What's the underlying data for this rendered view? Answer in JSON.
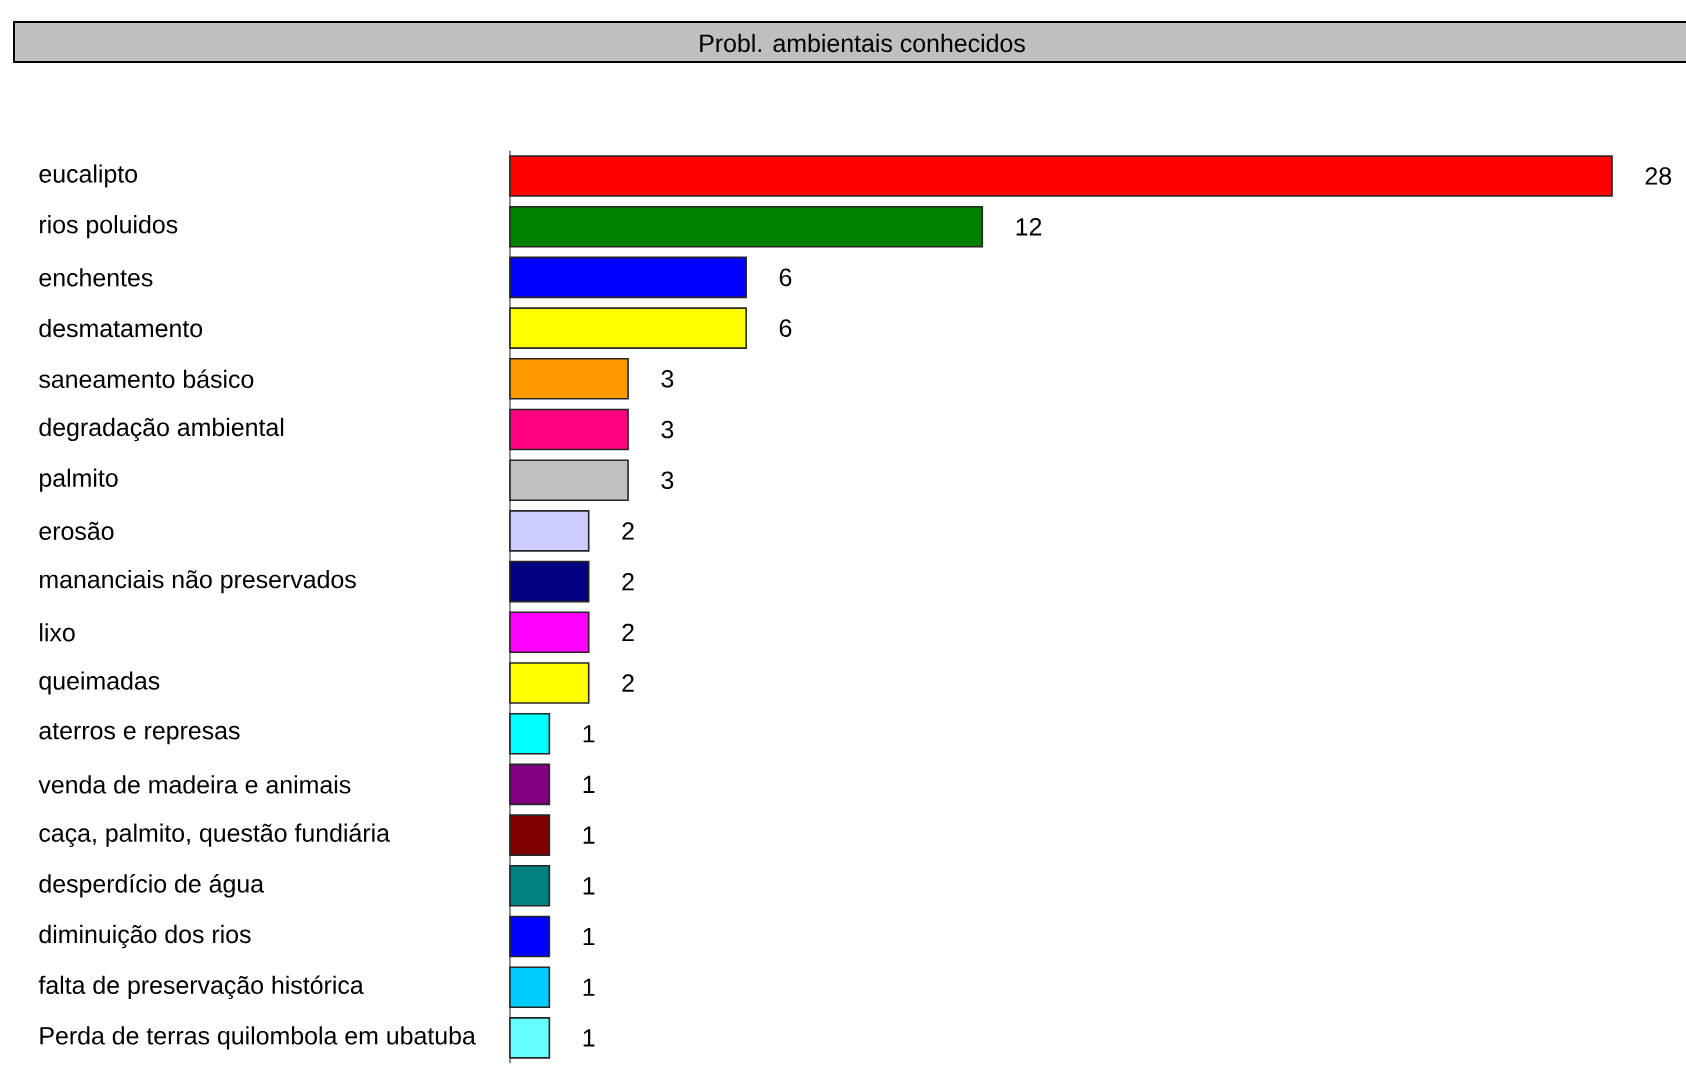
{
  "chart_data": {
    "type": "bar",
    "orientation": "horizontal",
    "title": "Probl. ambientais conhecidos",
    "categories": [
      "eucalipto",
      "rios poluidos",
      "enchentes",
      "desmatamento",
      "saneamento básico",
      "degradação ambiental",
      "palmito",
      "erosão",
      "mananciais não preservados",
      "lixo",
      "queimadas",
      "aterros e represas",
      "venda de madeira e animais",
      "caça, palmito, questão fundiária",
      "desperdício de água",
      "diminuição dos rios",
      "falta de preservação histórica",
      "Perda de terras quilombola em ubatuba"
    ],
    "values": [
      28,
      12,
      6,
      6,
      3,
      3,
      3,
      2,
      2,
      2,
      2,
      1,
      1,
      1,
      1,
      1,
      1,
      1
    ],
    "colors": [
      "#ff0000",
      "#008000",
      "#0000ff",
      "#ffff00",
      "#ff9900",
      "#ff0080",
      "#c0c0c0",
      "#ccccff",
      "#000080",
      "#ff00ff",
      "#ffff00",
      "#00ffff",
      "#800080",
      "#800000",
      "#008080",
      "#0000ff",
      "#00ccff",
      "#66ffff"
    ],
    "data_labels": true
  }
}
